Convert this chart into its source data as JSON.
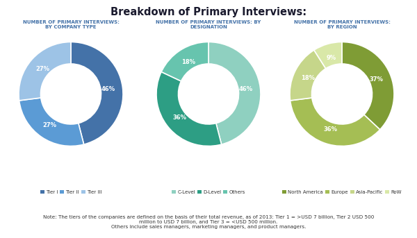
{
  "title": "Breakdown of Primary Interviews:",
  "charts": [
    {
      "subtitle": "NUMBER OF PRIMARY INTERVIEWS:\nBY COMPANY TYPE",
      "values": [
        46,
        27,
        27
      ],
      "labels": [
        "46%",
        "27%",
        "27%"
      ],
      "colors": [
        "#4472A8",
        "#5B9BD5",
        "#9DC3E6"
      ],
      "legend_labels": [
        "Tier I",
        "Tier II",
        "Tier III"
      ],
      "legend_colors": [
        "#4472A8",
        "#5B9BD5",
        "#9DC3E6"
      ]
    },
    {
      "subtitle": "NUMBER OF PRIMARY INTERVIEWS: BY\nDESIGNATION",
      "values": [
        46,
        36,
        18
      ],
      "labels": [
        "46%",
        "36%",
        "18%"
      ],
      "colors": [
        "#8FD0C0",
        "#2D9E84",
        "#67C4AE"
      ],
      "legend_labels": [
        "C-Level",
        "D-Level",
        "Others"
      ],
      "legend_colors": [
        "#8FD0C0",
        "#2D9E84",
        "#67C4AE"
      ]
    },
    {
      "subtitle": "NUMBER OF PRIMARY INTERVIEWS:\nBY REGION",
      "values": [
        37,
        36,
        18,
        9
      ],
      "labels": [
        "37%",
        "36%",
        "18%",
        "9%"
      ],
      "colors": [
        "#7F9C35",
        "#A5BE54",
        "#C6D68A",
        "#D9E8A8"
      ],
      "legend_labels": [
        "North America",
        "Europe",
        "Asia-Pacific",
        "RoW"
      ],
      "legend_colors": [
        "#7F9C35",
        "#A5BE54",
        "#C6D68A",
        "#D9E8A8"
      ]
    }
  ],
  "note_lines": [
    "Note: The tiers of the companies are defined on the basis of their total revenue, as of 2013: Tier 1 = >USD 7 billion, Tier 2 USD 500",
    "million to USD 7 billion, and Tier 3 = <USD 500 million.",
    "Others include sales managers, marketing managers, and product managers."
  ],
  "bg_color": "#FFFFFF",
  "title_color": "#1A1A2E",
  "subtitle_color": "#4472A8",
  "note_color": "#333333"
}
